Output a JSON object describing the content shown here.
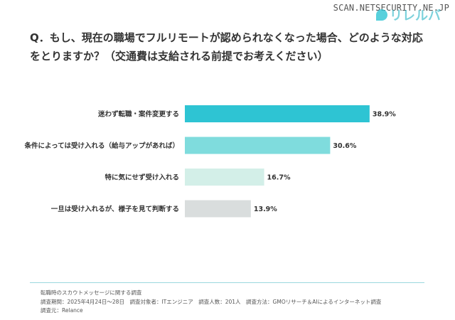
{
  "header": {
    "watermark": "SCAN.NETSECURITY.NE.JP",
    "logo_text": "リレルバ"
  },
  "question": "Q．もし、現在の職場でフルリモートが認められなくなった場合、どのような対応をとりますか？（交通費は支給される前提でお考えください）",
  "colors": {
    "bar1": "#2ec4d3",
    "bar2": "#7fdcdd",
    "bar3": "#d3efe8",
    "bar4": "#d9dddd"
  },
  "chart_data": {
    "type": "bar",
    "orientation": "horizontal",
    "title": "Q．もし、現在の職場でフルリモートが認められなくなった場合、どのような対応をとりますか？（交通費は支給される前提でお考えください）",
    "categories": [
      "迷わず転職・案件変更する",
      "条件によっては受け入れる（給与アップがあれば）",
      "特に気にせず受け入れる",
      "一旦は受け入れるが、様子を見て判断する"
    ],
    "values": [
      38.9,
      30.6,
      16.7,
      13.9
    ],
    "data_labels": [
      "38.9%",
      "30.6%",
      "16.7%",
      "13.9%"
    ],
    "unit": "%",
    "xlim": [
      0,
      100
    ],
    "grid": false,
    "xlabel": "",
    "ylabel": ""
  },
  "footer": {
    "line1": "転職時のスカウトメッセージに関する調査",
    "line2": "調査期間：2025年4月24日～28日　調査対象者：ITエンジニア　調査人数：201人　調査方法：GMOリサーチ＆AIによるインターネット調査",
    "line3": "調査元：Relance"
  }
}
